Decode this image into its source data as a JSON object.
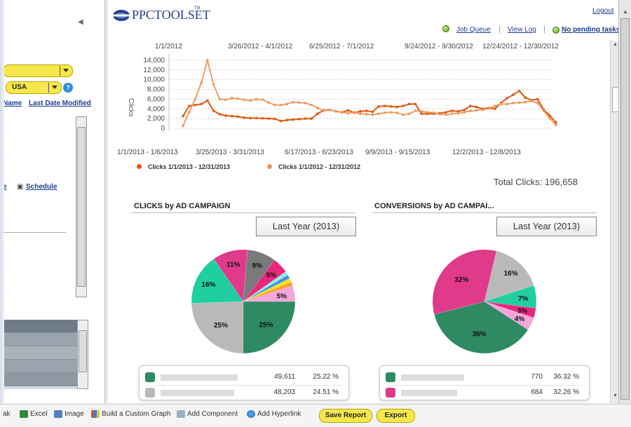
{
  "left_panel": {
    "country_select": "USA",
    "col_name": "Name",
    "col_last_date_modified": "Last Date Modified",
    "schedule_link": "Schedule"
  },
  "header": {
    "logo_text": "PPCTOOLSET",
    "logo_tm": "TM",
    "logout": "Logout",
    "job_queue": "Job Queue",
    "view_log": "View Log",
    "pending": "No pending tasks."
  },
  "line_chart": {
    "top_ticks": [
      "1/1/2012",
      "3/26/2012 - 4/1/2012",
      "6/25/2012 - 7/1/2012",
      "9/24/2012 - 9/30/2012",
      "12/24/2012 - 12/30/2012"
    ],
    "bottom_ticks": [
      "1/1/2013 - 1/6/2013",
      "3/25/2013 - 3/31/2013",
      "6/17/2013 - 6/23/2013",
      "9/9/2013 - 9/15/2013",
      "12/2/2013 - 12/8/2013"
    ],
    "y_ticks": [
      "14,000",
      "12,000",
      "10,000",
      "8,000",
      "6,000",
      "4,000",
      "2,000",
      "0"
    ],
    "ylabel": "Clicks",
    "legend": [
      "Clicks 1/1/2013 - 12/31/2013",
      "Clicks 1/1/2012 - 12/31/2012"
    ],
    "total_clicks": "Total Clicks: 196,658"
  },
  "chart_data": [
    {
      "type": "line",
      "ylim": [
        0,
        14000
      ],
      "colors": [
        "#e2570f",
        "#f0955a"
      ],
      "series": [
        {
          "name": "Clicks 1/1/2013 - 12/31/2013",
          "values": [
            2500,
            4600,
            4800,
            5000,
            5700,
            3600,
            2900,
            2600,
            2500,
            2400,
            2200,
            2100,
            2100,
            2050,
            2000,
            1950,
            1500,
            1700,
            1800,
            1900,
            2000,
            2000,
            3000,
            3700,
            3800,
            3500,
            3300,
            3700,
            3200,
            3500,
            3600,
            3400,
            4500,
            4600,
            4500,
            4400,
            4600,
            5000,
            5000,
            3000,
            3000,
            3000,
            3100,
            3300,
            3600,
            3500,
            3800,
            4600,
            4400,
            4000,
            4200,
            4000,
            5200,
            6200,
            6900,
            7700,
            6300,
            5800,
            6000,
            3800,
            2600,
            1200
          ]
        },
        {
          "name": "Clicks 1/1/2012 - 12/31/2012",
          "values": [
            500,
            3300,
            6000,
            9400,
            14000,
            9000,
            6000,
            5900,
            6200,
            6100,
            5900,
            5700,
            6000,
            5900,
            5300,
            4800,
            4800,
            5000,
            5400,
            5300,
            5200,
            4800,
            4200,
            3600,
            3800,
            3500,
            3300,
            3100,
            3300,
            3000,
            2900,
            2800,
            3000,
            3200,
            3300,
            3200,
            2800,
            3000,
            3600,
            3500,
            3300,
            3200,
            2900,
            2800,
            3000,
            3100,
            3300,
            3600,
            3700,
            3800,
            4100,
            4600,
            5000,
            5000,
            5200,
            5300,
            5400,
            5600,
            5200,
            3600,
            2000,
            700
          ]
        }
      ]
    },
    {
      "type": "pie",
      "title": "CLICKS by AD CAMPAIGN",
      "period": "Last Year (2013)",
      "slices": [
        {
          "label": "25%",
          "value": 25.22,
          "color": "#2e8a63"
        },
        {
          "label": "25%",
          "value": 24.51,
          "color": "#b9b9b9"
        },
        {
          "label": "16%",
          "value": 16,
          "color": "#1fcfa0"
        },
        {
          "label": "11%",
          "value": 11,
          "color": "#e03a8a"
        },
        {
          "label": "9%",
          "value": 9,
          "color": "#7a7a7a"
        },
        {
          "label": "5%",
          "value": 5,
          "color": "#e8287c"
        },
        {
          "label": "",
          "value": 1.2,
          "color": "#8ff0e0"
        },
        {
          "label": "",
          "value": 1.2,
          "color": "#3f8fe8"
        },
        {
          "label": "",
          "value": 1.2,
          "color": "#f2e21a"
        },
        {
          "label": "",
          "value": 1.2,
          "color": "#f5a020"
        },
        {
          "label": "5%",
          "value": 5,
          "color": "#f4a6dc"
        }
      ]
    },
    {
      "type": "pie",
      "title": "CONVERSIONS by AD CAMPAI...",
      "period": "Last Year (2013)",
      "slices": [
        {
          "label": "36%",
          "value": 36.32,
          "color": "#2e8a63"
        },
        {
          "label": "32%",
          "value": 32.26,
          "color": "#e03a8a"
        },
        {
          "label": "16%",
          "value": 16,
          "color": "#b9b9b9"
        },
        {
          "label": "7%",
          "value": 7,
          "color": "#1fcfa0"
        },
        {
          "label": "3%",
          "value": 3,
          "color": "#e8287c"
        },
        {
          "label": "4%",
          "value": 4,
          "color": "#f4a6dc"
        }
      ]
    }
  ],
  "clicks_legend": [
    {
      "value": "49,611",
      "pct": "25.22 %",
      "color": "#2e8a63"
    },
    {
      "value": "48,203",
      "pct": "24.51 %",
      "color": "#b9b9b9"
    }
  ],
  "conv_legend": [
    {
      "value": "770",
      "pct": "36.32 %",
      "color": "#2e8a63"
    },
    {
      "value": "684",
      "pct": "32.26 %",
      "color": "#e03a8a"
    }
  ],
  "toolbar": {
    "first_partial": "ak",
    "excel": "Excel",
    "image": "Image",
    "custom_graph": "Build a Custom Graph",
    "add_component": "Add Component",
    "add_hyperlink": "Add Hyperlink",
    "save_report": "Save Report",
    "export": "Export"
  }
}
